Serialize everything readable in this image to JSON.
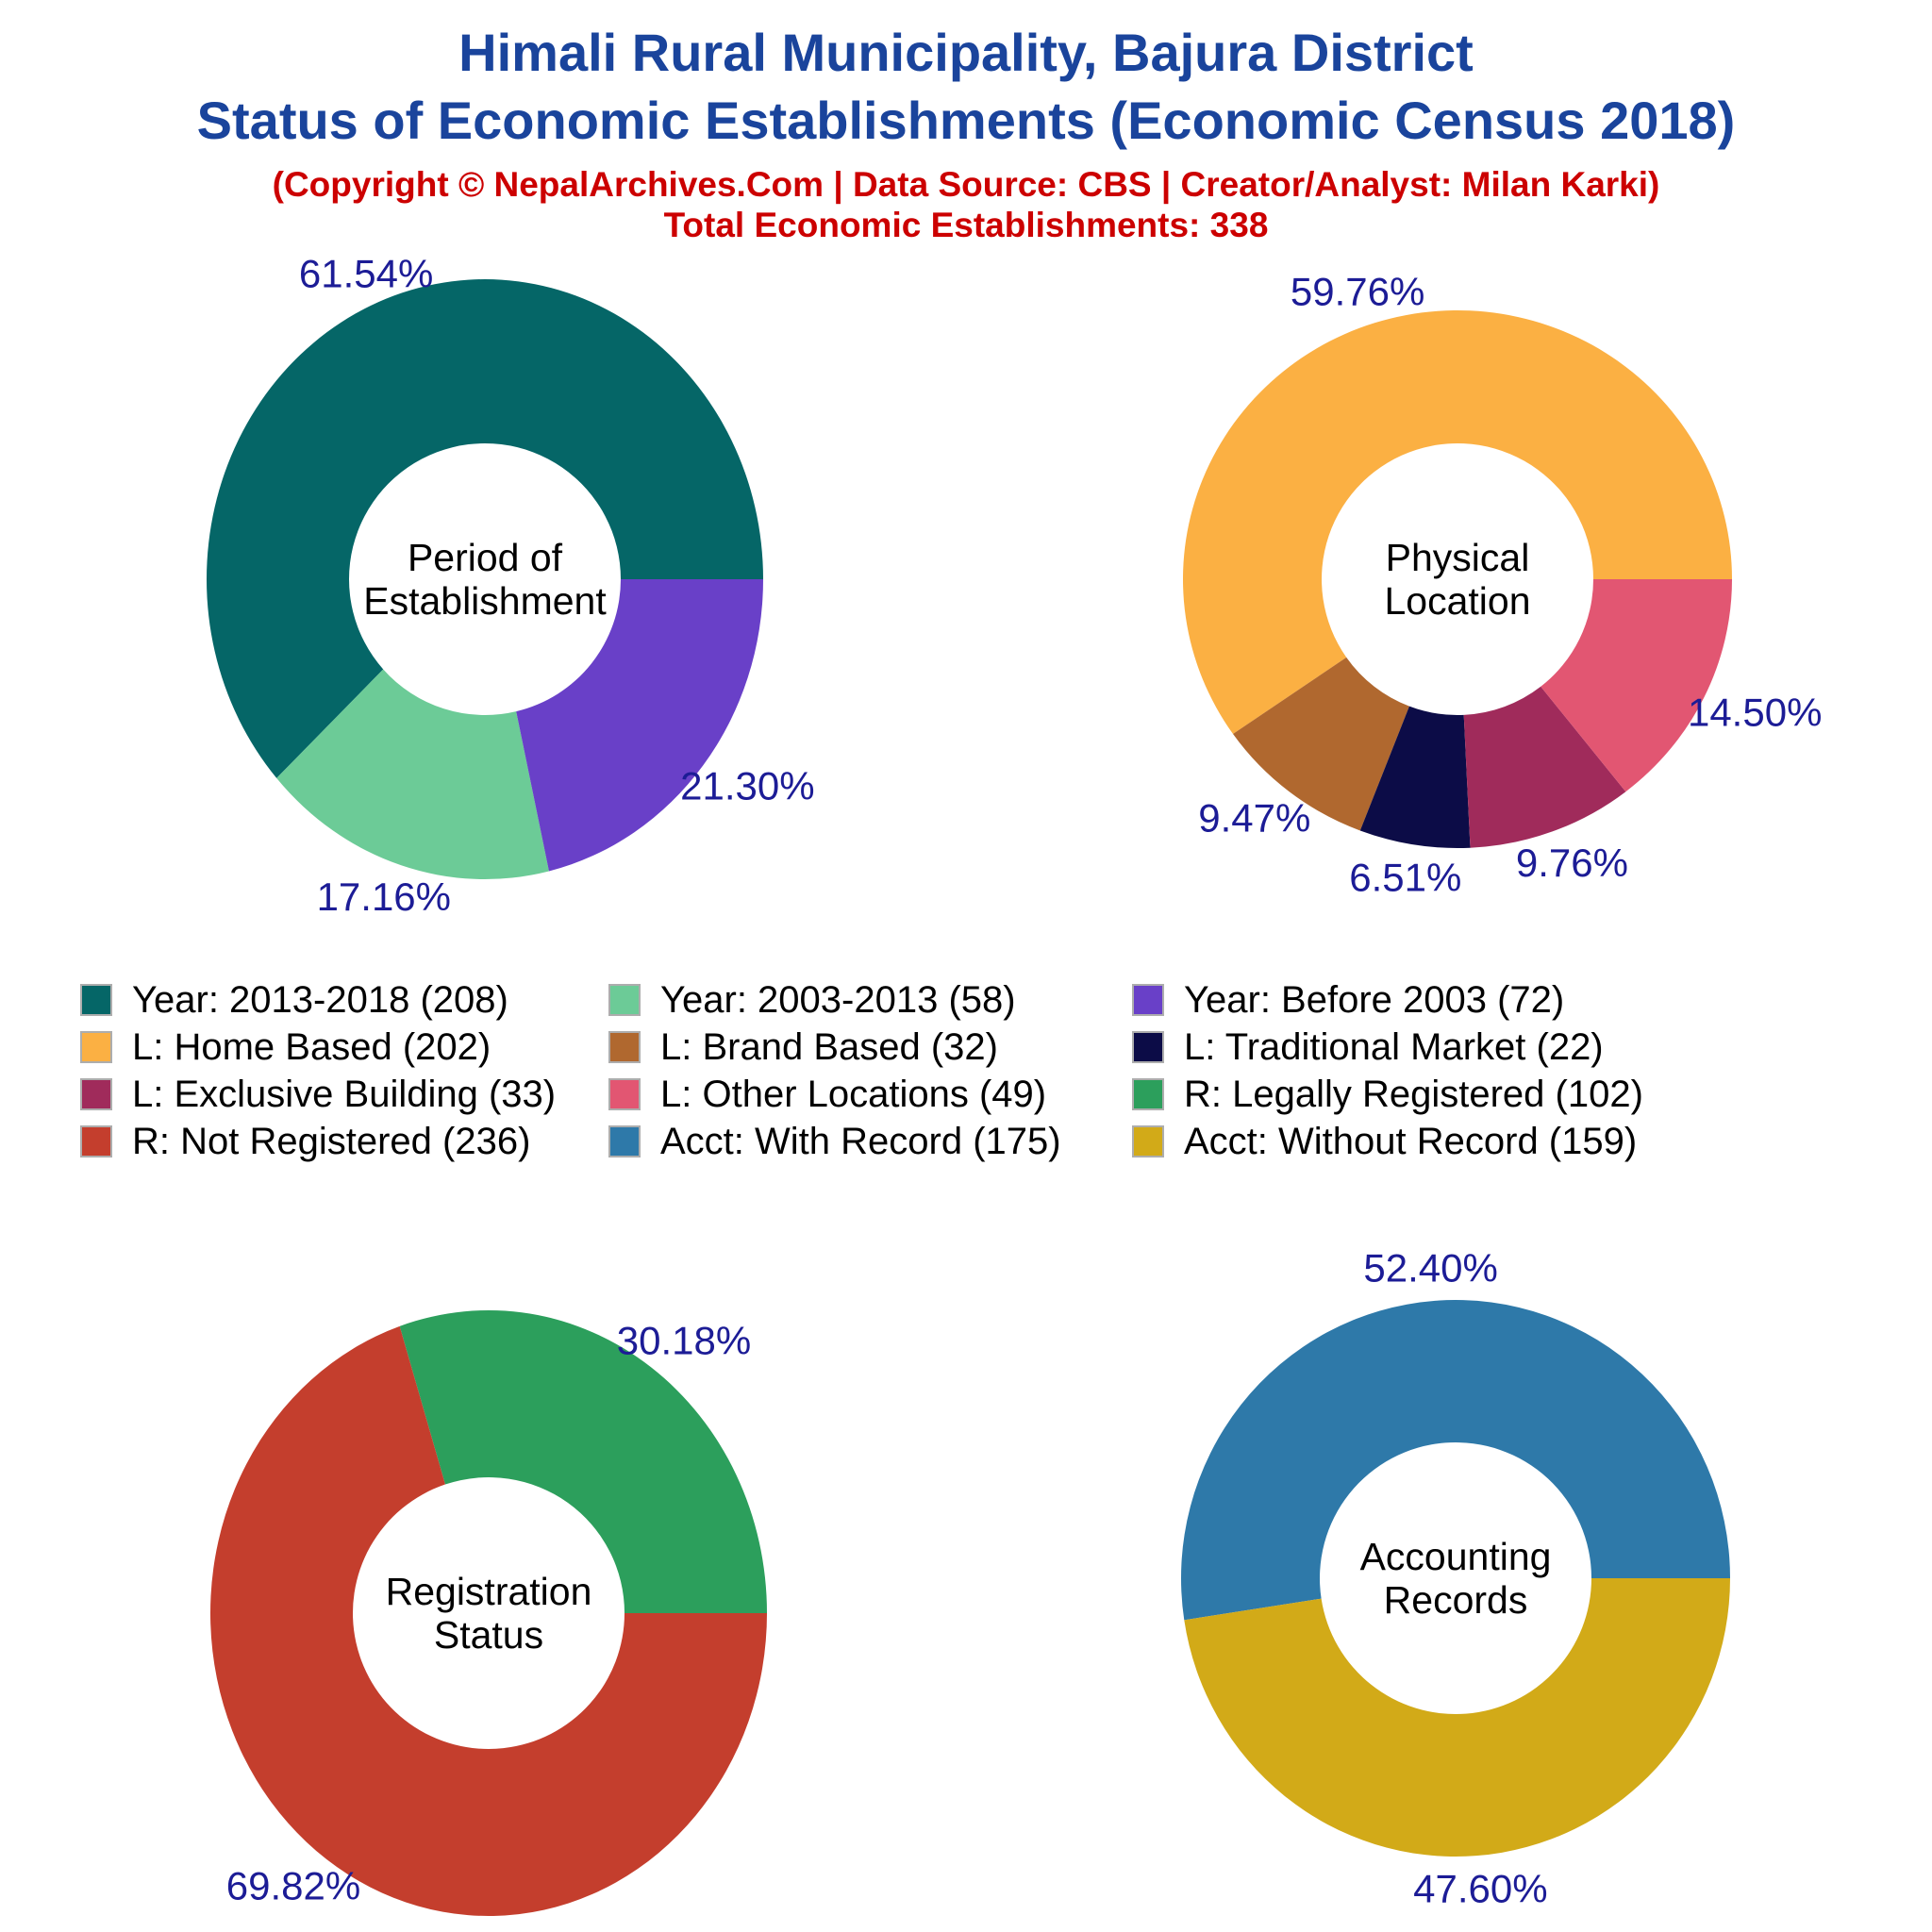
{
  "header": {
    "title_line1": "Himali Rural Municipality, Bajura District",
    "title_line2": "Status of Economic Establishments (Economic Census 2018)",
    "subtitle": "(Copyright © NepalArchives.Com | Data Source: CBS | Creator/Analyst: Milan Karki)",
    "total_line": "Total Economic Establishments: 338"
  },
  "total_establishments": 338,
  "palette": {
    "teal": "#056667",
    "light_green": "#6CCB97",
    "purple": "#6940C8",
    "orange": "#FBB043",
    "brown": "#B0682F",
    "navy": "#0C0C47",
    "maroon": "#A02B5B",
    "pink": "#E25672",
    "green": "#2C9F5C",
    "red": "#C43E2D",
    "blue": "#2E79A9",
    "gold": "#D2AA18",
    "title_blue": "#1A449C",
    "subtitle_red": "#CC0000",
    "percent_label": "#1C1C96",
    "center_label": "#000000"
  },
  "chart_data": [
    {
      "type": "pie",
      "title": "Period of Establishment",
      "center_label": [
        "Period of",
        "Establishment"
      ],
      "legend_position": "below",
      "slices": [
        {
          "label": "Year: 2013-2018",
          "count": 208,
          "pct": 61.54,
          "color": "teal"
        },
        {
          "label": "Year: 2003-2013",
          "count": 58,
          "pct": 17.16,
          "color": "light_green"
        },
        {
          "label": "Year: Before 2003",
          "count": 72,
          "pct": 21.3,
          "color": "purple"
        }
      ]
    },
    {
      "type": "pie",
      "title": "Physical Location",
      "center_label": [
        "Physical",
        "Location"
      ],
      "legend_position": "below",
      "slices": [
        {
          "label": "L: Home Based",
          "count": 202,
          "pct": 59.76,
          "color": "orange"
        },
        {
          "label": "L: Brand Based",
          "count": 32,
          "pct": 9.47,
          "color": "brown"
        },
        {
          "label": "L: Traditional Market",
          "count": 22,
          "pct": 6.51,
          "color": "navy"
        },
        {
          "label": "L: Exclusive Building",
          "count": 33,
          "pct": 9.76,
          "color": "maroon"
        },
        {
          "label": "L: Other Locations",
          "count": 49,
          "pct": 14.5,
          "color": "pink"
        }
      ]
    },
    {
      "type": "pie",
      "title": "Registration Status",
      "center_label": [
        "Registration",
        "Status"
      ],
      "legend_position": "above",
      "slices": [
        {
          "label": "R: Legally Registered",
          "count": 102,
          "pct": 30.18,
          "color": "green"
        },
        {
          "label": "R: Not Registered",
          "count": 236,
          "pct": 69.82,
          "color": "red"
        }
      ]
    },
    {
      "type": "pie",
      "title": "Accounting Records",
      "center_label": [
        "Accounting",
        "Records"
      ],
      "legend_position": "above",
      "slices": [
        {
          "label": "Acct: With Record",
          "count": 175,
          "pct": 52.4,
          "color": "blue"
        },
        {
          "label": "Acct: Without Record",
          "count": 159,
          "pct": 47.6,
          "color": "gold"
        }
      ]
    }
  ],
  "legend": [
    {
      "label": "Year: 2013-2018 (208)",
      "color": "teal"
    },
    {
      "label": "Year: 2003-2013 (58)",
      "color": "light_green"
    },
    {
      "label": "Year: Before 2003 (72)",
      "color": "purple"
    },
    {
      "label": "L: Home Based (202)",
      "color": "orange"
    },
    {
      "label": "L: Brand Based (32)",
      "color": "brown"
    },
    {
      "label": "L: Traditional Market (22)",
      "color": "navy"
    },
    {
      "label": "L: Exclusive Building (33)",
      "color": "maroon"
    },
    {
      "label": "L: Other Locations (49)",
      "color": "pink"
    },
    {
      "label": "R: Legally Registered (102)",
      "color": "green"
    },
    {
      "label": "R: Not Registered (236)",
      "color": "red"
    },
    {
      "label": "Acct: With Record (175)",
      "color": "blue"
    },
    {
      "label": "Acct: Without Record (159)",
      "color": "gold"
    }
  ]
}
